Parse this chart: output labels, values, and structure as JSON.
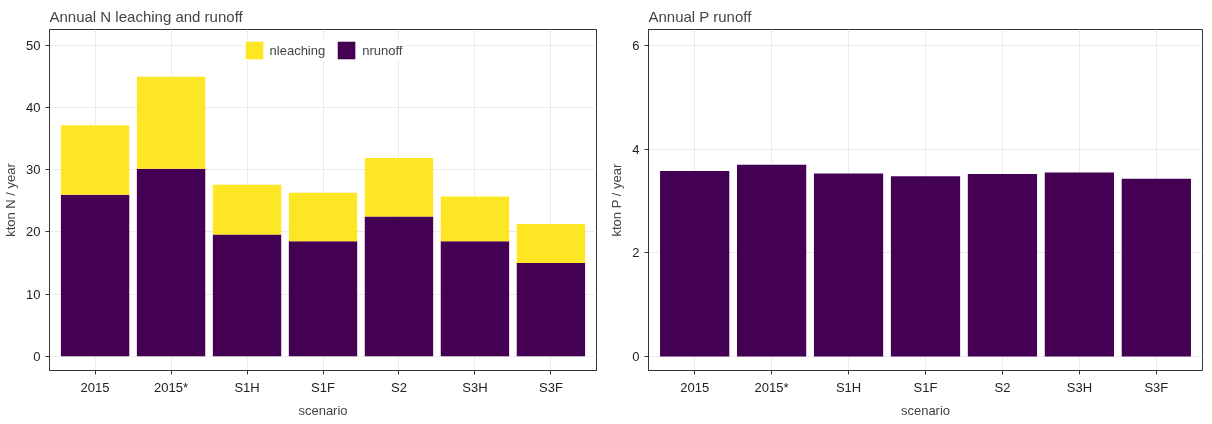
{
  "chart_data": [
    {
      "type": "bar",
      "title": "Annual N leaching and runoff",
      "xlabel": "scenario",
      "ylabel": "kton N / year",
      "categories": [
        "2015",
        "2015*",
        "S1H",
        "S1F",
        "S2",
        "S3H",
        "S3F"
      ],
      "stacked": true,
      "series": [
        {
          "name": "nrunoff",
          "color": "#440154",
          "values": [
            26.0,
            30.2,
            19.6,
            18.5,
            22.5,
            18.5,
            15.0
          ]
        },
        {
          "name": "nleaching",
          "color": "#fde725",
          "values": [
            11.2,
            14.8,
            8.0,
            7.8,
            9.4,
            7.2,
            6.3
          ]
        }
      ],
      "ylim": [
        -2.3,
        52.6
      ],
      "yticks": [
        0,
        10,
        20,
        30,
        40,
        50
      ],
      "grid": true,
      "legend": "top"
    },
    {
      "type": "bar",
      "title": "Annual P runoff",
      "xlabel": "scenario",
      "ylabel": "kton P / year",
      "categories": [
        "2015",
        "2015*",
        "S1H",
        "S1F",
        "S2",
        "S3H",
        "S3F"
      ],
      "series": [
        {
          "color": "#440154",
          "values": [
            3.58,
            3.7,
            3.53,
            3.48,
            3.52,
            3.55,
            3.43
          ]
        }
      ],
      "ylim": [
        -0.27,
        6.31
      ],
      "yticks": [
        0,
        2,
        4,
        6
      ],
      "grid": true
    }
  ]
}
